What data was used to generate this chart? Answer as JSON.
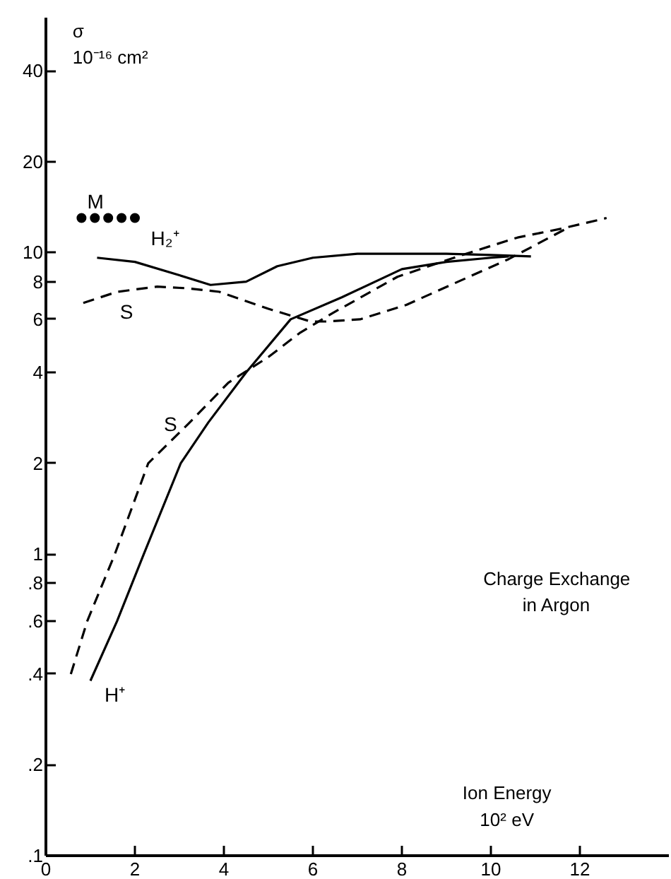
{
  "chart_data": {
    "type": "line",
    "title": "Charge Exchange\nin Argon",
    "xlabel": "Ion Energy\n10² eV",
    "ylabel": "σ\n10⁻¹⁶ cm²",
    "log": "y",
    "xlim": [
      0,
      14
    ],
    "ylim": [
      0.1,
      60
    ],
    "xticks": [
      0,
      2,
      4,
      6,
      8,
      10,
      12
    ],
    "yticks": [
      {
        "value": 0.1,
        "label": ".1"
      },
      {
        "value": 0.2,
        "label": ".2"
      },
      {
        "value": 0.4,
        "label": ".4"
      },
      {
        "value": 0.6,
        "label": ".6"
      },
      {
        "value": 0.8,
        "label": ".8"
      },
      1,
      2,
      4,
      6,
      8,
      10,
      20,
      40
    ],
    "series": [
      {
        "name": "M",
        "type": "scatter",
        "marker": "circle",
        "color": "#000000",
        "x": [
          0.8,
          1.1,
          1.4,
          1.7,
          2.0
        ],
        "values": [
          13,
          13,
          13,
          13,
          13
        ]
      },
      {
        "name": "H₂⁺",
        "color": "#000000",
        "line_style": "solid",
        "x": [
          1.15,
          2.0,
          3.0,
          3.7,
          4.5,
          5.2,
          6.0,
          7.0,
          8.0,
          9.0,
          10.0,
          10.9
        ],
        "values": [
          9.6,
          9.3,
          8.4,
          7.8,
          8.0,
          9.0,
          9.6,
          9.9,
          9.9,
          9.9,
          9.8,
          9.7
        ]
      },
      {
        "name": "S",
        "color": "#000000",
        "line_style": "dashed",
        "x": [
          0.84,
          1.6,
          2.5,
          3.2,
          3.9,
          5.0,
          5.95,
          6.3,
          7.06,
          8.1,
          9.1,
          10.4,
          11.7
        ],
        "values": [
          6.8,
          7.4,
          7.7,
          7.6,
          7.4,
          6.5,
          5.9,
          5.9,
          6.0,
          6.7,
          7.8,
          9.5,
          12
        ]
      },
      {
        "name": "S",
        "color": "#000000",
        "line_style": "dashed",
        "x": [
          0.56,
          0.93,
          1.55,
          2.3,
          3.2,
          4.1,
          5.0,
          5.7,
          6.45,
          7.9,
          9.35,
          10.6,
          11.6,
          12.6
        ],
        "values": [
          0.4,
          0.6,
          1.0,
          2.0,
          2.7,
          3.7,
          4.5,
          5.4,
          6.3,
          8.3,
          9.8,
          11.2,
          12,
          13
        ]
      },
      {
        "name": "H⁺",
        "color": "#000000",
        "line_style": "solid",
        "x": [
          1.0,
          1.6,
          2.2,
          3.03,
          3.65,
          4.5,
          5.5,
          6.65,
          8.0,
          9.0,
          10.0,
          10.4
        ],
        "values": [
          0.38,
          0.6,
          1.0,
          2.0,
          2.73,
          4.0,
          6.0,
          7.1,
          8.8,
          9.3,
          9.6,
          9.7
        ]
      }
    ]
  }
}
